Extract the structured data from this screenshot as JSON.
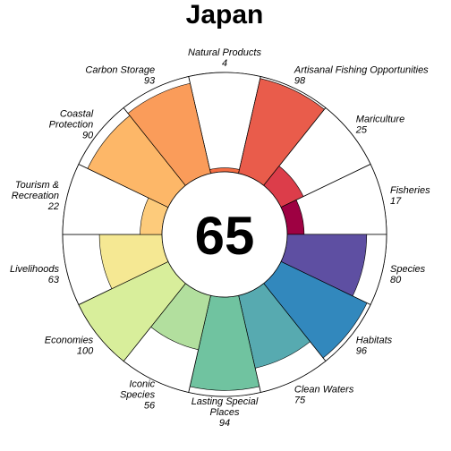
{
  "chart_data": {
    "type": "flower",
    "title": "Japan",
    "score": "65",
    "max": 100,
    "grid": false,
    "legend": "none",
    "petals": [
      {
        "name": [
          "Natural Products"
        ],
        "value": 4,
        "color": "#F46D43"
      },
      {
        "name": [
          "Artisanal Fishing Opportunities"
        ],
        "value": 98,
        "color": "#E95C4B"
      },
      {
        "name": [
          "Mariculture"
        ],
        "value": 25,
        "color": "#DC3D4A"
      },
      {
        "name": [
          "Fisheries"
        ],
        "value": 17,
        "color": "#9E0142"
      },
      {
        "name": [
          "Species"
        ],
        "value": 80,
        "color": "#5E4FA2"
      },
      {
        "name": [
          "Habitats"
        ],
        "value": 96,
        "color": "#3288BD"
      },
      {
        "name": [
          "Clean Waters"
        ],
        "value": 75,
        "color": "#57AAB0"
      },
      {
        "name": [
          "Lasting Special",
          "Places"
        ],
        "value": 94,
        "color": "#70C3A0"
      },
      {
        "name": [
          "Iconic",
          "Species"
        ],
        "value": 56,
        "color": "#B2DF9E"
      },
      {
        "name": [
          "Economies"
        ],
        "value": 100,
        "color": "#D8EE9B"
      },
      {
        "name": [
          "Livelihoods"
        ],
        "value": 63,
        "color": "#F5E893"
      },
      {
        "name": [
          "Tourism &",
          "Recreation"
        ],
        "value": 22,
        "color": "#FDCB7B"
      },
      {
        "name": [
          "Coastal",
          "Protection"
        ],
        "value": 90,
        "color": "#FDB768"
      },
      {
        "name": [
          "Carbon Storage"
        ],
        "value": 93,
        "color": "#FA9C5A"
      }
    ]
  }
}
